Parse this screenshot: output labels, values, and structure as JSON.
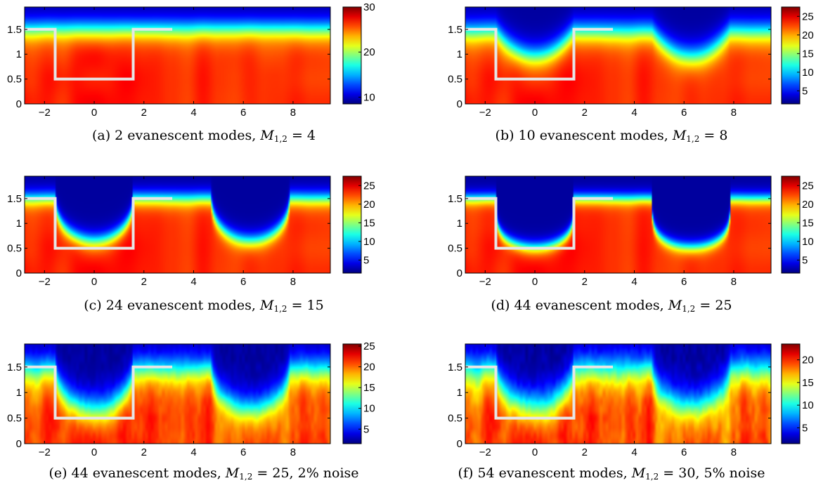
{
  "chart_data": [
    {
      "type": "heatmap",
      "label": "(a)",
      "modes": "2",
      "M": "4",
      "noise": "",
      "x_range": [
        -2.8,
        9.5
      ],
      "y_range": [
        0,
        1.95
      ],
      "xticks": [
        "−2",
        "0",
        "2",
        "4",
        "6",
        "8"
      ],
      "xtick_values": [
        -2,
        0,
        2,
        4,
        6,
        8
      ],
      "yticks": [
        "0",
        "0.5",
        "1",
        "1.5"
      ],
      "ytick_values": [
        0,
        0.5,
        1,
        1.5
      ],
      "colorbar_ticks": [
        "10",
        "20",
        "30"
      ],
      "colorbar_tick_values": [
        10,
        20,
        30
      ],
      "colorbar_range": [
        8.5,
        30
      ],
      "true_profile": {
        "x": [
          -2.8,
          -1.57,
          -1.57,
          1.57,
          1.57,
          3.14
        ],
        "y": [
          1.5,
          1.5,
          0.5,
          0.5,
          1.5,
          1.5
        ]
      },
      "reconstruction": {
        "floor": 1.5,
        "depth": 0.0,
        "smooth": 0.35,
        "blur": 0.14,
        "noise": 0.0
      }
    },
    {
      "type": "heatmap",
      "label": "(b)",
      "modes": "10",
      "M": "8",
      "noise": "",
      "x_range": [
        -2.8,
        9.5
      ],
      "y_range": [
        0,
        1.95
      ],
      "xticks": [
        "−2",
        "0",
        "2",
        "4",
        "6",
        "8"
      ],
      "xtick_values": [
        -2,
        0,
        2,
        4,
        6,
        8
      ],
      "yticks": [
        "0",
        "0.5",
        "1",
        "1.5"
      ],
      "ytick_values": [
        0,
        0.5,
        1,
        1.5
      ],
      "colorbar_ticks": [
        "5",
        "10",
        "15",
        "20",
        "25"
      ],
      "colorbar_tick_values": [
        5,
        10,
        15,
        20,
        25
      ],
      "colorbar_range": [
        1.5,
        27.5
      ],
      "true_profile": {
        "x": [
          -2.8,
          -1.57,
          -1.57,
          1.57,
          1.57,
          3.14
        ],
        "y": [
          1.5,
          1.5,
          0.5,
          0.5,
          1.5,
          1.5
        ]
      },
      "reconstruction": {
        "floor": 1.45,
        "depth": 0.5,
        "smooth": 1.0,
        "blur": 0.15,
        "noise": 0.0
      }
    },
    {
      "type": "heatmap",
      "label": "(c)",
      "modes": "24",
      "M": "15",
      "noise": "",
      "x_range": [
        -2.8,
        9.5
      ],
      "y_range": [
        0,
        1.95
      ],
      "xticks": [
        "−2",
        "0",
        "2",
        "4",
        "6",
        "8"
      ],
      "xtick_values": [
        -2,
        0,
        2,
        4,
        6,
        8
      ],
      "yticks": [
        "0",
        "0.5",
        "1",
        "1.5"
      ],
      "ytick_values": [
        0,
        0.5,
        1,
        1.5
      ],
      "colorbar_ticks": [
        "5",
        "10",
        "15",
        "20",
        "25"
      ],
      "colorbar_tick_values": [
        5,
        10,
        15,
        20,
        25
      ],
      "colorbar_range": [
        1.5,
        27.5
      ],
      "true_profile": {
        "x": [
          -2.8,
          -1.57,
          -1.57,
          1.57,
          1.57,
          3.14
        ],
        "y": [
          1.5,
          1.5,
          0.5,
          0.5,
          1.5,
          1.5
        ]
      },
      "reconstruction": {
        "floor": 1.5,
        "depth": 0.85,
        "smooth": 2.2,
        "blur": 0.1,
        "noise": 0.0
      }
    },
    {
      "type": "heatmap",
      "label": "(d)",
      "modes": "44",
      "M": "25",
      "noise": "",
      "x_range": [
        -2.8,
        9.5
      ],
      "y_range": [
        0,
        1.95
      ],
      "xticks": [
        "−2",
        "0",
        "2",
        "4",
        "6",
        "8"
      ],
      "xtick_values": [
        -2,
        0,
        2,
        4,
        6,
        8
      ],
      "yticks": [
        "0",
        "0.5",
        "1",
        "1.5"
      ],
      "ytick_values": [
        0,
        0.5,
        1,
        1.5
      ],
      "colorbar_ticks": [
        "5",
        "10",
        "15",
        "20",
        "25"
      ],
      "colorbar_tick_values": [
        5,
        10,
        15,
        20,
        25
      ],
      "colorbar_range": [
        1.5,
        27.5
      ],
      "true_profile": {
        "x": [
          -2.8,
          -1.57,
          -1.57,
          1.57,
          1.57,
          3.14
        ],
        "y": [
          1.5,
          1.5,
          0.5,
          0.5,
          1.5,
          1.5
        ]
      },
      "reconstruction": {
        "floor": 1.5,
        "depth": 0.98,
        "smooth": 4.0,
        "blur": 0.08,
        "noise": 0.0
      }
    },
    {
      "type": "heatmap",
      "label": "(e)",
      "modes": "44",
      "M": "25",
      "noise": "2%",
      "x_range": [
        -2.8,
        9.5
      ],
      "y_range": [
        0,
        1.95
      ],
      "xticks": [
        "−2",
        "0",
        "2",
        "4",
        "6",
        "8"
      ],
      "xtick_values": [
        -2,
        0,
        2,
        4,
        6,
        8
      ],
      "yticks": [
        "0",
        "0.5",
        "1",
        "1.5"
      ],
      "ytick_values": [
        0,
        0.5,
        1,
        1.5
      ],
      "colorbar_ticks": [
        "5",
        "10",
        "15",
        "20",
        "25"
      ],
      "colorbar_tick_values": [
        5,
        10,
        15,
        20,
        25
      ],
      "colorbar_range": [
        1.5,
        25.5
      ],
      "true_profile": {
        "x": [
          -2.8,
          -1.57,
          -1.57,
          1.57,
          1.57,
          3.14
        ],
        "y": [
          1.5,
          1.5,
          0.5,
          0.5,
          1.5,
          1.5
        ]
      },
      "reconstruction": {
        "floor": 1.45,
        "depth": 0.78,
        "smooth": 1.8,
        "blur": 0.18,
        "noise": 0.1
      }
    },
    {
      "type": "heatmap",
      "label": "(f)",
      "modes": "54",
      "M": "30",
      "noise": "5%",
      "x_range": [
        -2.8,
        9.5
      ],
      "y_range": [
        0,
        1.95
      ],
      "xticks": [
        "−2",
        "0",
        "2",
        "4",
        "6",
        "8"
      ],
      "xtick_values": [
        -2,
        0,
        2,
        4,
        6,
        8
      ],
      "yticks": [
        "0",
        "0.5",
        "1",
        "1.5"
      ],
      "ytick_values": [
        0,
        0.5,
        1,
        1.5
      ],
      "colorbar_ticks": [
        "5",
        "10",
        "15",
        "20"
      ],
      "colorbar_tick_values": [
        5,
        10,
        15,
        20
      ],
      "colorbar_range": [
        1.5,
        23.5
      ],
      "true_profile": {
        "x": [
          -2.8,
          -1.57,
          -1.57,
          1.57,
          1.57,
          3.14
        ],
        "y": [
          1.5,
          1.5,
          0.5,
          0.5,
          1.5,
          1.5
        ]
      },
      "reconstruction": {
        "floor": 1.45,
        "depth": 0.72,
        "smooth": 1.7,
        "blur": 0.2,
        "noise": 0.14
      }
    }
  ],
  "captions": [
    {
      "pre": "(a) 2 evanescent modes, ",
      "m": "M",
      "sub": "1,2",
      "post": " = 4"
    },
    {
      "pre": "(b) 10 evanescent modes, ",
      "m": "M",
      "sub": "1,2",
      "post": " = 8"
    },
    {
      "pre": "(c) 24 evanescent modes, ",
      "m": "M",
      "sub": "1,2",
      "post": " = 15"
    },
    {
      "pre": "(d) 44 evanescent modes, ",
      "m": "M",
      "sub": "1,2",
      "post": " = 25"
    },
    {
      "pre": "(e) 44 evanescent modes, ",
      "m": "M",
      "sub": "1,2",
      "post": " = 25, 2% noise"
    },
    {
      "pre": "(f) 54 evanescent modes, ",
      "m": "M",
      "sub": "1,2",
      "post": " = 30, 5% noise"
    }
  ],
  "colors": {
    "profile_line": "#e6e6e6",
    "axis": "#000000",
    "background": "#ffffff"
  }
}
